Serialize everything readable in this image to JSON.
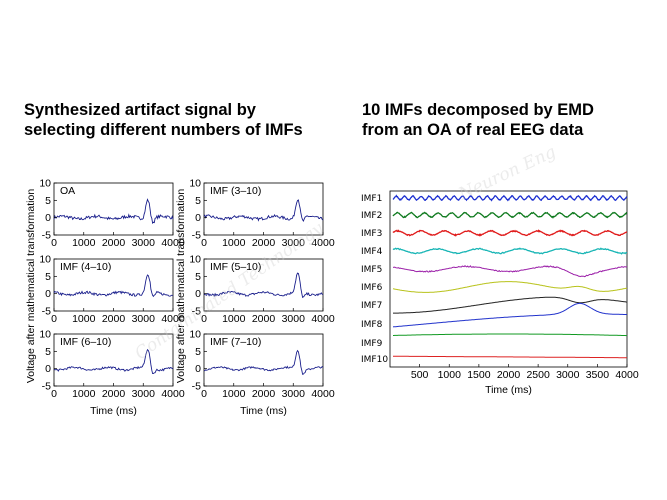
{
  "headings": {
    "left": [
      "Synthesized artifact signal by",
      "selecting different numbers of IMFs"
    ],
    "right": [
      "10 IMFs decomposed by EMD",
      "from an OA of real EEG data"
    ]
  },
  "watermark": [
    "Contaminated Technology",
    "Neuron Eng"
  ],
  "colors": {
    "trace": "#1a1f8c",
    "panel_border": "#000000"
  },
  "chart_data": [
    {
      "type": "line",
      "panels": [
        "OA",
        "IMF (3–10)",
        "IMF (4–10)",
        "IMF (5–10)",
        "IMF (6–10)",
        "IMF (7–10)"
      ],
      "xlim": [
        0,
        4000
      ],
      "ylim": [
        -5,
        10
      ],
      "xticks": [
        "0",
        "1000",
        "2000",
        "3000",
        "4000"
      ],
      "yticks": [
        "10",
        "5",
        "0",
        "-5"
      ],
      "xlabel": "Time (ms)",
      "ylabel": "Voltage after mathematical transformation",
      "peak": {
        "x": 3150,
        "y": 5.5
      }
    },
    {
      "type": "line",
      "series": [
        {
          "name": "IMF1",
          "color": "#1c2fd0"
        },
        {
          "name": "IMF2",
          "color": "#0f7a1e"
        },
        {
          "name": "IMF3",
          "color": "#e01b1b"
        },
        {
          "name": "IMF4",
          "color": "#18b5b5"
        },
        {
          "name": "IMF5",
          "color": "#9b1fa8"
        },
        {
          "name": "IMF6",
          "color": "#b8c21a"
        },
        {
          "name": "IMF7",
          "color": "#222222"
        },
        {
          "name": "IMF8",
          "color": "#2233cc"
        },
        {
          "name": "IMF9",
          "color": "#119922"
        },
        {
          "name": "IMF10",
          "color": "#dd2222"
        }
      ],
      "xlim": [
        0,
        4000
      ],
      "xticks": [
        "500",
        "1000",
        "1500",
        "2000",
        "2500",
        "3000",
        "3500",
        "4000"
      ],
      "xlabel": "Time (ms)"
    }
  ]
}
